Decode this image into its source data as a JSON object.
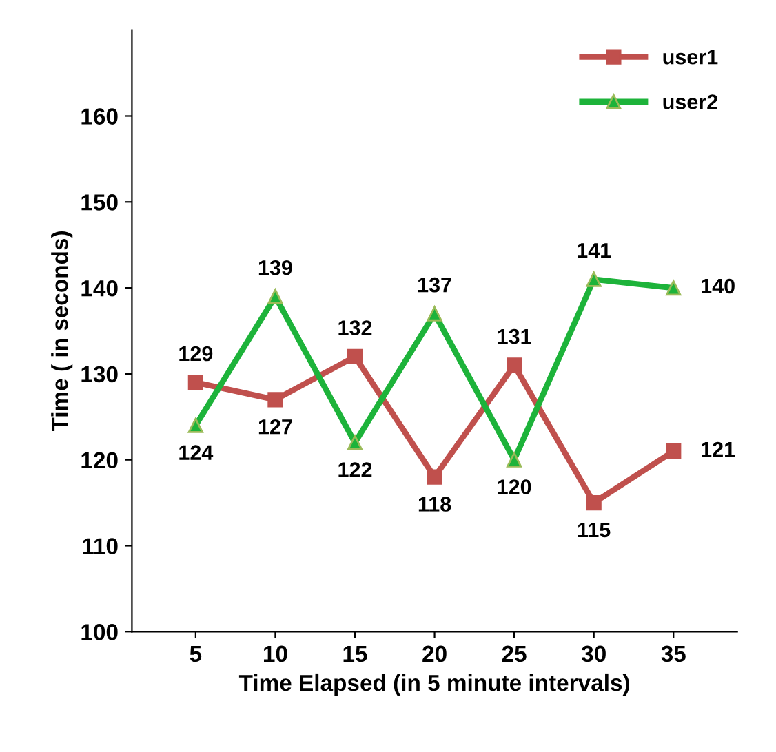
{
  "chart_data": {
    "type": "line",
    "xlabel": "Time Elapsed (in 5 minute intervals)",
    "ylabel": "Time ( in seconds)",
    "categories": [
      "5",
      "10",
      "15",
      "20",
      "25",
      "30",
      "35"
    ],
    "series": [
      {
        "name": "user1",
        "color": "#c0504d",
        "marker": "square",
        "values": [
          129,
          127,
          132,
          118,
          131,
          115,
          121
        ]
      },
      {
        "name": "user2",
        "color": "#1db33a",
        "marker": "triangle",
        "values": [
          124,
          139,
          122,
          137,
          120,
          141,
          140
        ]
      }
    ],
    "ylim": [
      100,
      170
    ],
    "yticks": [
      100,
      110,
      120,
      130,
      140,
      150,
      160
    ],
    "grid": false,
    "legend": "top right",
    "data_labels": true
  }
}
